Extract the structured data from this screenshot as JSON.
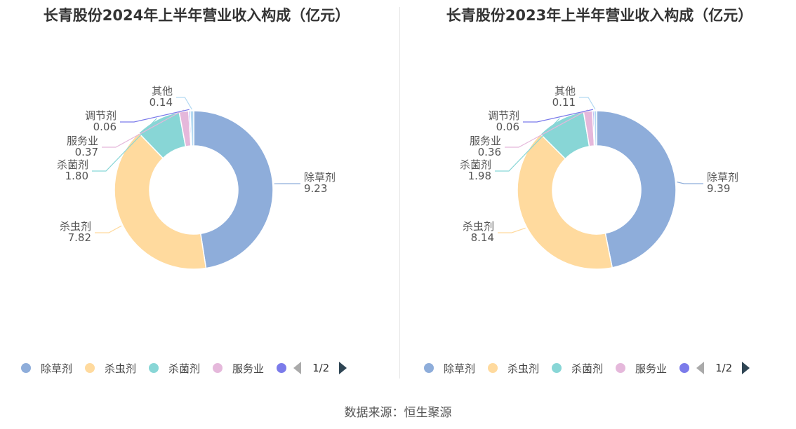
{
  "source_label": "数据来源：恒生聚源",
  "legend_page": "1/2",
  "chart_data": [
    {
      "type": "pie",
      "title": "长青股份2024年上半年营业收入构成（亿元）",
      "donut": true,
      "categories": [
        "除草剂",
        "杀虫剂",
        "杀菌剂",
        "服务业",
        "调节剂",
        "其他"
      ],
      "values": [
        9.23,
        7.82,
        1.8,
        0.37,
        0.06,
        0.14
      ],
      "value_labels": [
        "9.23",
        "7.82",
        "1.80",
        "0.37",
        "0.06",
        "0.14"
      ],
      "colors": [
        "#8eadda",
        "#ffda9e",
        "#88d6d6",
        "#e5b8db",
        "#7b7bea",
        "#b3d9f2"
      ],
      "legend_visible": [
        "除草剂",
        "杀虫剂",
        "杀菌剂",
        "服务业"
      ],
      "legend_position": "bottom"
    },
    {
      "type": "pie",
      "title": "长青股份2023年上半年营业收入构成（亿元）",
      "donut": true,
      "categories": [
        "除草剂",
        "杀虫剂",
        "杀菌剂",
        "服务业",
        "调节剂",
        "其他"
      ],
      "values": [
        9.39,
        8.14,
        1.98,
        0.36,
        0.06,
        0.11
      ],
      "value_labels": [
        "9.39",
        "8.14",
        "1.98",
        "0.36",
        "0.06",
        "0.11"
      ],
      "colors": [
        "#8eadda",
        "#ffda9e",
        "#88d6d6",
        "#e5b8db",
        "#7b7bea",
        "#b3d9f2"
      ],
      "legend_visible": [
        "除草剂",
        "杀虫剂",
        "杀菌剂",
        "服务业"
      ],
      "legend_position": "bottom"
    }
  ]
}
